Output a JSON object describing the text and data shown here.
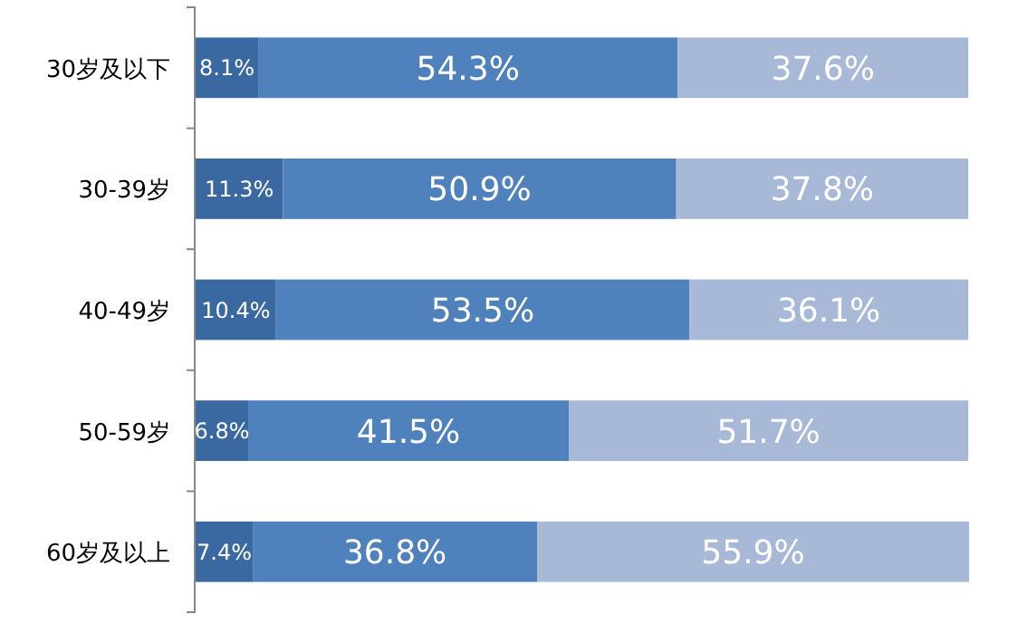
{
  "chart_data": {
    "type": "bar",
    "orientation": "horizontal",
    "stacked": true,
    "categories": [
      "30岁及以下",
      "30-39岁",
      "40-49岁",
      "50-59岁",
      "60岁及以上"
    ],
    "series": [
      {
        "color": "#3a68a0",
        "values": [
          8.1,
          11.3,
          10.4,
          6.8,
          7.4
        ],
        "value_labels": [
          "8.1%",
          "11.3%",
          "10.4%",
          "6.8%",
          "7.4%"
        ]
      },
      {
        "color": "#4f81bd",
        "values": [
          54.3,
          50.9,
          53.5,
          41.5,
          36.8
        ],
        "value_labels": [
          "54.3%",
          "50.9%",
          "53.5%",
          "41.5%",
          "36.8%"
        ]
      },
      {
        "color": "#a8b9d8",
        "values": [
          37.6,
          37.8,
          36.1,
          51.7,
          55.9
        ],
        "value_labels": [
          "37.6%",
          "37.8%",
          "36.1%",
          "51.7%",
          "55.9%"
        ]
      }
    ]
  }
}
